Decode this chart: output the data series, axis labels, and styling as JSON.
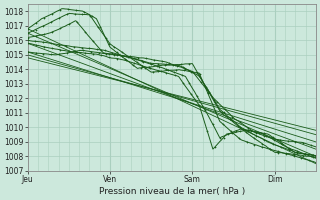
{
  "xlabel": "Pression niveau de la mer( hPa )",
  "ylim": [
    1007,
    1018.5
  ],
  "yticks": [
    1007,
    1008,
    1009,
    1010,
    1011,
    1012,
    1013,
    1014,
    1015,
    1016,
    1017,
    1018
  ],
  "day_labels": [
    "Jeu",
    "Ven",
    "Sam",
    "Dim"
  ],
  "xtick_pos": [
    0,
    24,
    48,
    72
  ],
  "xlim": [
    0,
    84
  ],
  "bg_color": "#cce8dc",
  "grid_color": "#aacfbf",
  "line_color": "#1a5c1a",
  "ylabel_fontsize": 5.5,
  "xlabel_fontsize": 6.5,
  "tick_fontsize": 5.5,
  "straight_lines": [
    {
      "x0": 0,
      "y0": 1016.8,
      "x1": 84,
      "y1": 1007.5
    },
    {
      "x0": 0,
      "y0": 1016.5,
      "x1": 84,
      "y1": 1008.0
    },
    {
      "x0": 0,
      "y0": 1015.8,
      "x1": 84,
      "y1": 1008.5
    },
    {
      "x0": 0,
      "y0": 1015.2,
      "x1": 84,
      "y1": 1009.0
    },
    {
      "x0": 0,
      "y0": 1015.0,
      "x1": 84,
      "y1": 1009.5
    },
    {
      "x0": 0,
      "y0": 1014.8,
      "x1": 84,
      "y1": 1009.8
    }
  ]
}
